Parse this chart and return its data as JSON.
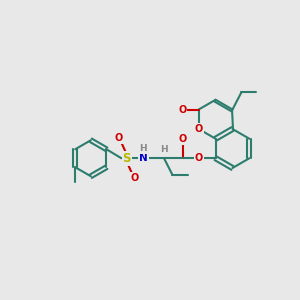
{
  "bg_color": "#e8e8e8",
  "bond_color": "#2d7d6e",
  "O_color": "#cc0000",
  "N_color": "#0000cc",
  "S_color": "#b8b800",
  "H_color": "#888888",
  "lw": 1.5,
  "dpi": 100,
  "figsize": [
    3.0,
    3.0
  ],
  "xlim": [
    0,
    10
  ],
  "ylim": [
    0,
    10
  ]
}
